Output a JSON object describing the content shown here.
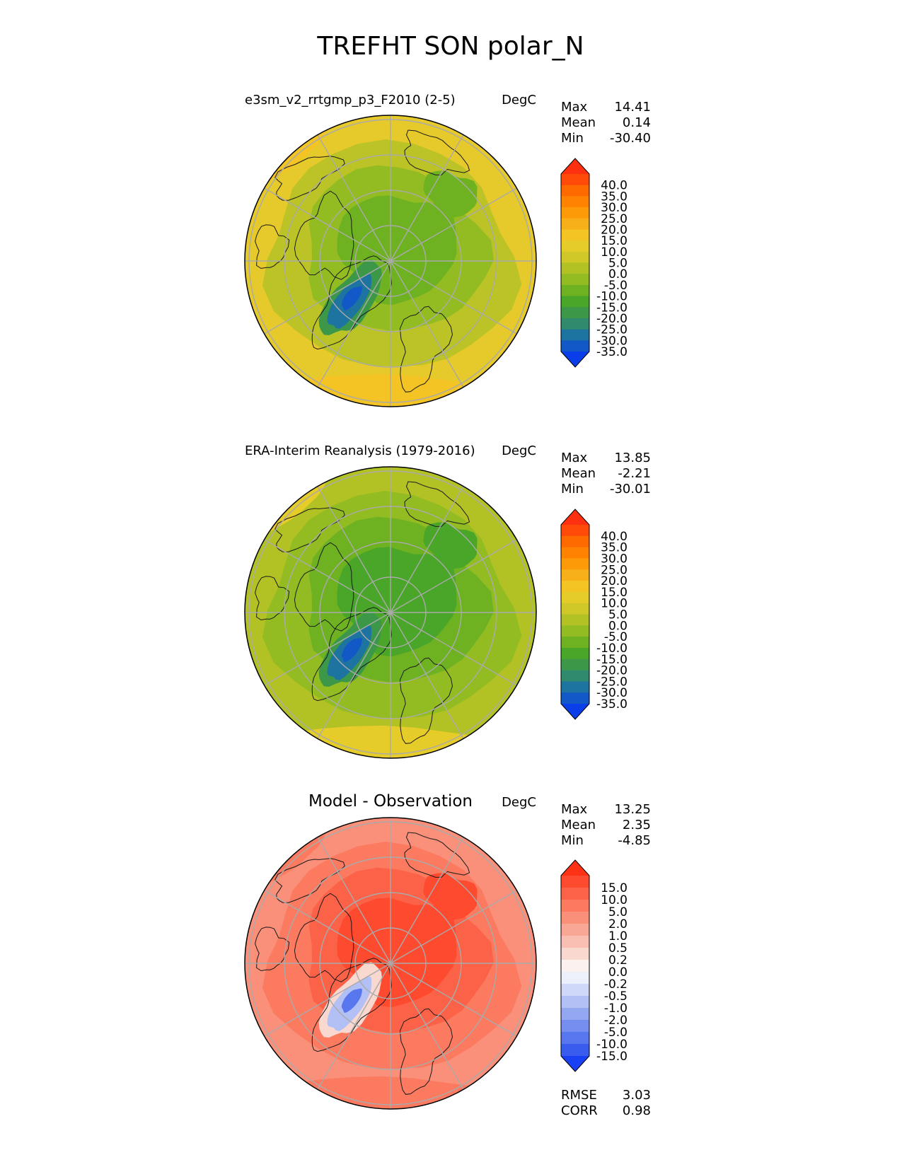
{
  "figure": {
    "title": "TREFHT SON polar_N"
  },
  "chart_data": [
    {
      "type": "heatmap",
      "title": "e3sm_v2_rrtgmp_p3_F2010 (2-5)",
      "units": "DegC",
      "stats": [
        {
          "label": "Max",
          "value": "14.41"
        },
        {
          "label": "Mean",
          "value": "0.14"
        },
        {
          "label": "Min",
          "value": "-30.40"
        }
      ],
      "colorbar": {
        "ticks": [
          "40.0",
          "35.0",
          "30.0",
          "25.0",
          "20.0",
          "15.0",
          "10.0",
          "5.0",
          "0.0",
          "-5.0",
          "-10.0",
          "-15.0",
          "-20.0",
          "-25.0",
          "-30.0",
          "-35.0"
        ],
        "colors": [
          "#ff3010",
          "#ff4a0a",
          "#ff6a00",
          "#ff8200",
          "#fd9a08",
          "#f8b01a",
          "#f3c424",
          "#e6cc28",
          "#cfc828",
          "#b2c224",
          "#93bc22",
          "#6eb222",
          "#4aa628",
          "#3c9848",
          "#2f8a6e",
          "#1e74a0",
          "#1258c6",
          "#0a3ee8"
        ],
        "extend": "both"
      },
      "field": {
        "projection": "north-polar-stereographic",
        "colors": {
          "outer": "#e6c92a",
          "mid": "#bcc326",
          "inner": "#93bc22",
          "core": "#6eb222",
          "cold1": "#3c9848",
          "cold2": "#1e74a0",
          "cold3": "#1258c6",
          "warm": "#f3c424"
        }
      }
    },
    {
      "type": "heatmap",
      "title": "ERA-Interim Reanalysis (1979-2016)",
      "units": "DegC",
      "stats": [
        {
          "label": "Max",
          "value": "13.85"
        },
        {
          "label": "Mean",
          "value": "-2.21"
        },
        {
          "label": "Min",
          "value": "-30.01"
        }
      ],
      "colorbar": {
        "ticks": [
          "40.0",
          "35.0",
          "30.0",
          "25.0",
          "20.0",
          "15.0",
          "10.0",
          "5.0",
          "0.0",
          "-5.0",
          "-10.0",
          "-15.0",
          "-20.0",
          "-25.0",
          "-30.0",
          "-35.0"
        ],
        "colors": [
          "#ff3010",
          "#ff4a0a",
          "#ff6a00",
          "#ff8200",
          "#fd9a08",
          "#f8b01a",
          "#f3c424",
          "#e6cc28",
          "#cfc828",
          "#b2c224",
          "#93bc22",
          "#6eb222",
          "#4aa628",
          "#3c9848",
          "#2f8a6e",
          "#1e74a0",
          "#1258c6",
          "#0a3ee8"
        ],
        "extend": "both"
      },
      "field": {
        "projection": "north-polar-stereographic",
        "colors": {
          "outer": "#b2c224",
          "mid": "#93bc22",
          "inner": "#6eb222",
          "core": "#4aa628",
          "cold1": "#3c9848",
          "cold2": "#1e74a0",
          "cold3": "#1258c6",
          "warm": "#e6cc28"
        }
      }
    },
    {
      "type": "heatmap",
      "title": "Model - Observation",
      "units": "DegC",
      "stats": [
        {
          "label": "Max",
          "value": "13.25"
        },
        {
          "label": "Mean",
          "value": "2.35"
        },
        {
          "label": "Min",
          "value": "-4.85"
        }
      ],
      "extra_stats": [
        {
          "label": "RMSE",
          "value": "3.03"
        },
        {
          "label": "CORR",
          "value": "0.98"
        }
      ],
      "colorbar": {
        "ticks": [
          "15.0",
          "10.0",
          "5.0",
          "2.0",
          "1.0",
          "0.5",
          "0.2",
          "0.0",
          "-0.2",
          "-0.5",
          "-1.0",
          "-2.0",
          "-5.0",
          "-10.0",
          "-15.0"
        ],
        "colors": [
          "#ff3216",
          "#fe4a2e",
          "#fc6247",
          "#fb7a60",
          "#fa9079",
          "#f9a795",
          "#f8bfb2",
          "#f9d8d0",
          "#fbf1ee",
          "#ecf0fb",
          "#cfd8f8",
          "#b2c0f5",
          "#94a7f1",
          "#768ef0",
          "#5876ee",
          "#3a5cee",
          "#1a40f4"
        ],
        "extend": "both"
      },
      "field": {
        "projection": "north-polar-stereographic",
        "colors": {
          "outer": "#fa9079",
          "mid": "#fb7a60",
          "inner": "#fc6247",
          "core": "#fe4a2e",
          "cold1": "#f9d8d0",
          "cold2": "#b2c0f5",
          "cold3": "#5876ee",
          "warm": "#fb7a60"
        }
      }
    }
  ]
}
